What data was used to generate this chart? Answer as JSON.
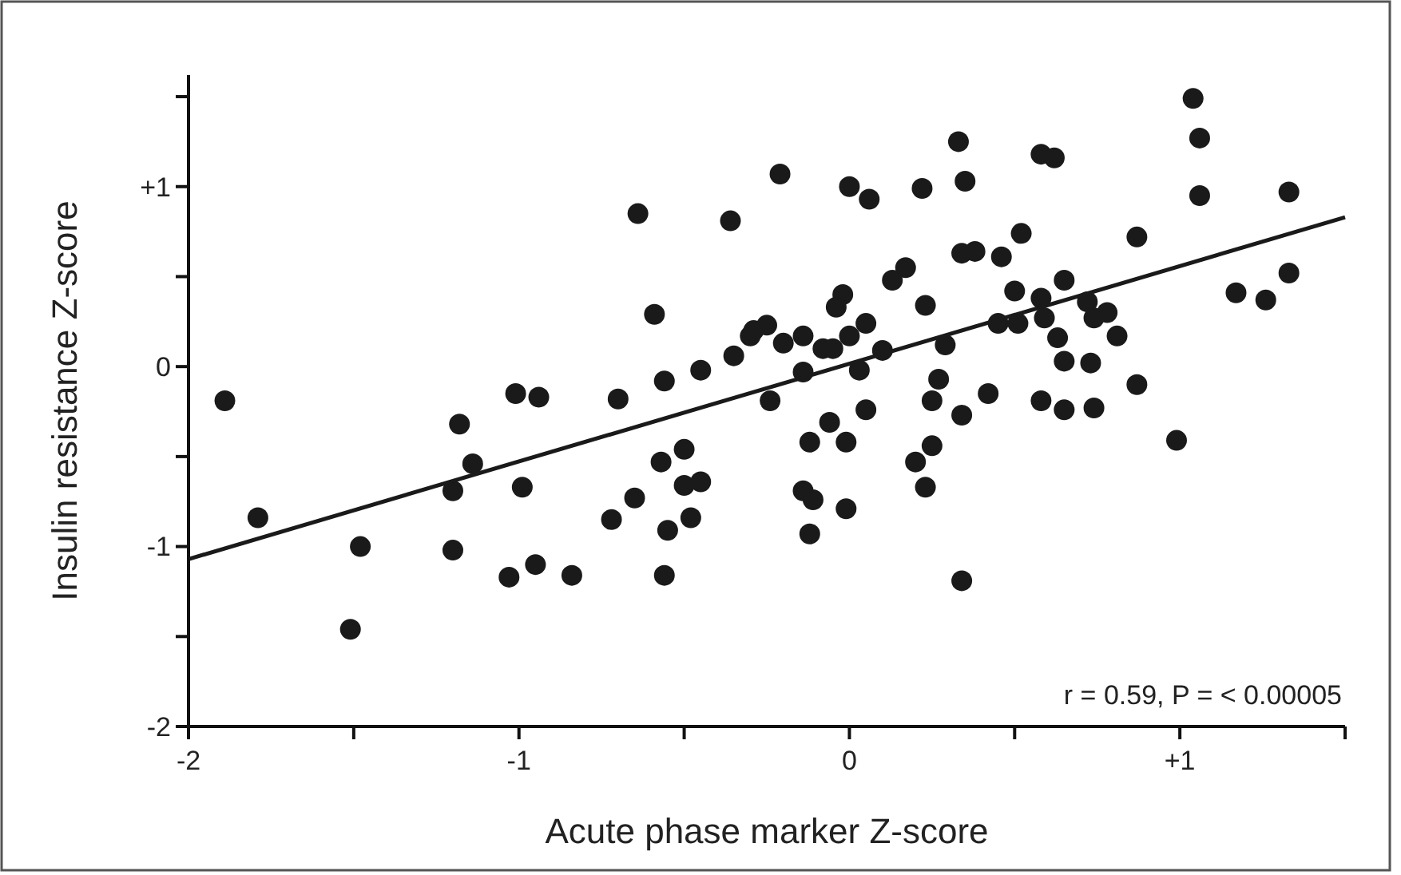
{
  "chart_data": {
    "type": "scatter",
    "xlabel": "Acute phase marker Z-score",
    "ylabel": "Insulin resistance Z-score",
    "xlim": [
      -2,
      1.5
    ],
    "ylim": [
      -2,
      1.62
    ],
    "xticks": [
      -2,
      {
        "value": -1.5,
        "label": null
      },
      -1,
      {
        "value": -0.5,
        "label": null
      },
      0,
      {
        "value": 0.5,
        "label": null
      },
      {
        "value": 1,
        "label": "+1"
      },
      {
        "value": 1.5,
        "label": null
      }
    ],
    "yticks": [
      -2,
      {
        "value": -1.5,
        "label": null
      },
      -1,
      {
        "value": -0.5,
        "label": null
      },
      0,
      {
        "value": 0.5,
        "label": null
      },
      {
        "value": 1,
        "label": "+1"
      },
      {
        "value": 1.5,
        "label": null
      }
    ],
    "grid": false,
    "marker": "circle",
    "annotations": [
      "r = 0.59, P = < 0.00005"
    ],
    "series": [
      {
        "color": "#1a1a1a",
        "x": [
          -1.89,
          -1.79,
          -1.48,
          -1.51,
          -1.18,
          -1.14,
          -1.01,
          -0.94,
          -0.7,
          -0.64,
          -0.59,
          -0.56,
          -0.45,
          -0.36,
          -0.35,
          -0.3,
          -0.29,
          -0.57,
          -0.5,
          -1.2,
          -1.2,
          -0.99,
          -1.03,
          -0.95,
          -0.84,
          -0.72,
          -0.65,
          -0.55,
          -0.56,
          -0.5,
          -0.45,
          -0.48,
          -0.14,
          -0.11,
          -0.01,
          -0.12,
          0.2,
          0.23,
          0.34,
          -0.21,
          0.0,
          0.06,
          0.22,
          0.33,
          0.35,
          0.58,
          0.62,
          1.04,
          1.06,
          1.06,
          1.33,
          1.33,
          1.17,
          1.26,
          0.87,
          0.52,
          0.34,
          0.38,
          0.46,
          0.17,
          0.13,
          0.5,
          0.65,
          0.23,
          -0.02,
          -0.04,
          0.58,
          0.59,
          0.72,
          0.78,
          0.74,
          0.81,
          0.63,
          0.45,
          0.51,
          0.29,
          0.05,
          0.1,
          0.0,
          -0.08,
          -0.14,
          -0.2,
          -0.25,
          -0.05,
          0.03,
          -0.14,
          -0.24,
          0.65,
          0.73,
          0.58,
          0.65,
          0.74,
          0.87,
          0.99,
          0.27,
          0.25,
          0.34,
          0.42,
          0.05,
          -0.06,
          -0.12,
          -0.01,
          0.25
        ],
        "values": [
          -0.19,
          -0.84,
          -1.0,
          -1.46,
          -0.32,
          -0.54,
          -0.15,
          -0.17,
          -0.18,
          0.85,
          0.29,
          -0.08,
          -0.02,
          0.81,
          0.06,
          0.17,
          0.2,
          -0.53,
          -0.46,
          -0.69,
          -1.02,
          -0.67,
          -1.17,
          -1.1,
          -1.16,
          -0.85,
          -0.73,
          -0.91,
          -1.16,
          -0.66,
          -0.64,
          -0.84,
          -0.69,
          -0.74,
          -0.79,
          -0.93,
          -0.53,
          -0.67,
          -1.19,
          1.07,
          1.0,
          0.93,
          0.99,
          1.25,
          1.03,
          1.18,
          1.16,
          1.49,
          1.27,
          0.95,
          0.97,
          0.52,
          0.41,
          0.37,
          0.72,
          0.74,
          0.63,
          0.64,
          0.61,
          0.55,
          0.48,
          0.42,
          0.48,
          0.34,
          0.4,
          0.33,
          0.38,
          0.27,
          0.36,
          0.3,
          0.27,
          0.17,
          0.16,
          0.24,
          0.24,
          0.12,
          0.24,
          0.09,
          0.17,
          0.1,
          0.17,
          0.13,
          0.23,
          0.1,
          -0.02,
          -0.03,
          -0.19,
          0.03,
          0.02,
          -0.19,
          -0.24,
          -0.23,
          -0.1,
          -0.41,
          -0.07,
          -0.19,
          -0.27,
          -0.15,
          -0.24,
          -0.31,
          -0.42,
          -0.42,
          -0.44
        ]
      },
      {
        "type": "line",
        "color": "#1a1a1a",
        "marker": "none",
        "x": [
          -2,
          1.5
        ],
        "values": [
          -1.07,
          0.83
        ]
      }
    ]
  }
}
